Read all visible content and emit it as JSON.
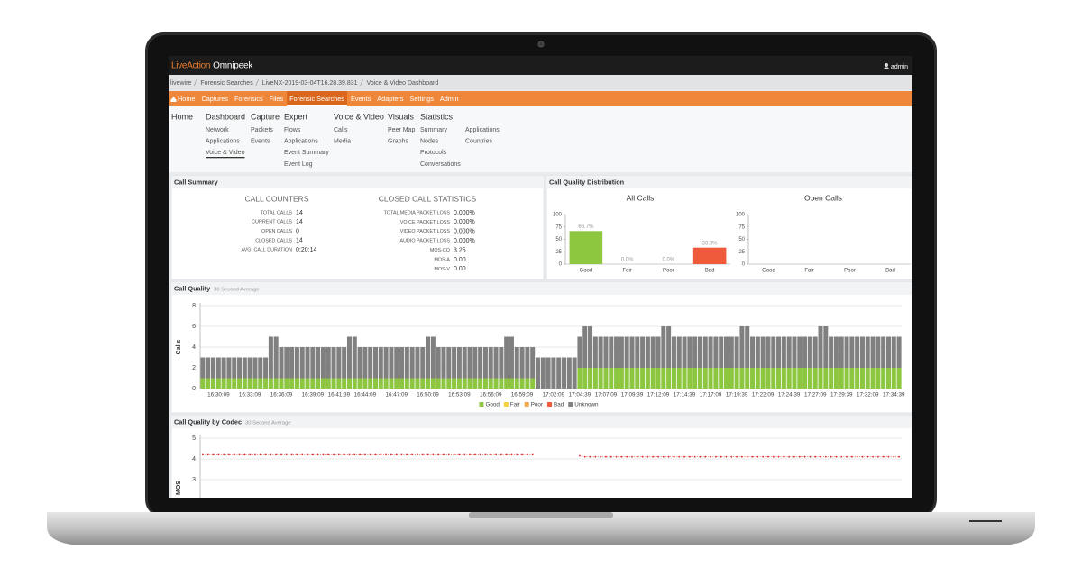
{
  "header": {
    "brand": "LiveAction",
    "product": "Omnipeek",
    "user": "admin"
  },
  "breadcrumb": [
    "livewire",
    "Forensic Searches",
    "LiveNX-2019-03-04T16.28.39.831",
    "Voice & Video Dashboard"
  ],
  "nav": {
    "items": [
      "Home",
      "Captures",
      "Forensics",
      "Files",
      "Forensic Searches",
      "Events",
      "Adapters",
      "Settings",
      "Admin"
    ],
    "active": "Forensic Searches"
  },
  "menu": [
    {
      "title": "Home"
    },
    {
      "title": "Dashboard",
      "items": [
        "Network",
        "Applications",
        "Voice & Video"
      ],
      "active": "Voice & Video"
    },
    {
      "title": "Capture",
      "items": [
        "Packets",
        "Events"
      ]
    },
    {
      "title": "Expert",
      "items": [
        "Flows",
        "Applications",
        "Event Summary",
        "Event Log"
      ]
    },
    {
      "title": "Voice & Video",
      "items": [
        "Calls",
        "Media"
      ]
    },
    {
      "title": "Visuals",
      "items": [
        "Peer Map",
        "Graphs"
      ]
    },
    {
      "title": "Statistics",
      "items": [
        "Summary",
        "Nodes",
        "Protocols",
        "Conversations"
      ],
      "more_items": [
        "Applications",
        "Countries"
      ]
    }
  ],
  "call_summary": {
    "title": "Call Summary",
    "counters": {
      "heading": "CALL COUNTERS",
      "rows": [
        {
          "label": "TOTAL CALLS",
          "value": 14
        },
        {
          "label": "CURRENT CALLS",
          "value": 14
        },
        {
          "label": "OPEN CALLS",
          "value": 0
        },
        {
          "label": "CLOSED CALLS",
          "value": 14
        },
        {
          "label": "AVG. CALL DURATION",
          "value": "0:20:14"
        }
      ]
    },
    "closed": {
      "heading": "CLOSED CALL STATISTICS",
      "rows": [
        {
          "label": "TOTAL MEDIA PACKET LOSS",
          "value": "0.000%"
        },
        {
          "label": "VOICE PACKET LOSS",
          "value": "0.000%"
        },
        {
          "label": "VIDEO PACKET LOSS",
          "value": "0.000%"
        },
        {
          "label": "AUDIO PACKET LOSS",
          "value": "0.000%"
        },
        {
          "label": "MOS-CQ",
          "value": 3.25
        },
        {
          "label": "MOS-A",
          "value": "0.00"
        },
        {
          "label": "MOS-V",
          "value": "0.00"
        }
      ]
    }
  },
  "distribution": {
    "title": "Call Quality Distribution",
    "charts": [
      {
        "type": "bar",
        "title": "All Calls",
        "categories": [
          "Good",
          "Fair",
          "Poor",
          "Bad"
        ],
        "values": [
          66.7,
          0,
          0,
          33.3
        ],
        "value_labels": [
          "66.7%",
          "0.0%",
          "0.0%",
          "33.3%"
        ],
        "colors": [
          "#8dc63f",
          "#8dc63f",
          "#8dc63f",
          "#ef5a3c"
        ],
        "ylim": [
          0,
          100
        ],
        "yticks": [
          0,
          25,
          50,
          75,
          100
        ]
      },
      {
        "type": "bar",
        "title": "Open Calls",
        "categories": [
          "Good",
          "Fair",
          "Poor",
          "Bad"
        ],
        "ylim": [
          0,
          100
        ],
        "yticks": [
          0,
          25,
          50,
          75,
          100
        ]
      }
    ]
  },
  "chart_data": [
    {
      "type": "stacked_bar",
      "title": "Call Quality",
      "subtitle": "30 Second Average",
      "y_label": "Calls",
      "categories": [
        null,
        null,
        null,
        "16:30:09",
        null,
        null,
        null,
        null,
        null,
        "16:33:09",
        null,
        null,
        null,
        null,
        null,
        "16:36:09",
        null,
        null,
        null,
        null,
        null,
        "16:39:09",
        null,
        null,
        null,
        null,
        "16:41:39",
        null,
        null,
        null,
        null,
        "16:44:09",
        null,
        null,
        null,
        null,
        null,
        "16:47:09",
        null,
        null,
        null,
        null,
        null,
        "16:50:09",
        null,
        null,
        null,
        null,
        null,
        "16:53:09",
        null,
        null,
        null,
        null,
        null,
        "16:56:09",
        null,
        null,
        null,
        null,
        null,
        "16:59:09",
        null,
        null,
        null,
        null,
        null,
        "17:02:09",
        null,
        null,
        null,
        null,
        "17:04:39",
        null,
        null,
        null,
        null,
        "17:07:09",
        null,
        null,
        null,
        null,
        "17:09:39",
        null,
        null,
        null,
        null,
        "17:12:09",
        null,
        null,
        null,
        null,
        "17:14:39",
        null,
        null,
        null,
        null,
        "17:17:09",
        null,
        null,
        null,
        null,
        "17:19:39",
        null,
        null,
        null,
        null,
        "17:22:09",
        null,
        null,
        null,
        null,
        "17:24:39",
        null,
        null,
        null,
        null,
        "17:27:09",
        null,
        null,
        null,
        null,
        "17:29:39",
        null,
        null,
        null,
        null,
        "17:32:09",
        null,
        null,
        null,
        null,
        "17:34:39",
        null
      ],
      "series": [
        {
          "name": "Good",
          "color": "#8dc63f",
          "values": [
            1,
            1,
            1,
            1,
            1,
            1,
            1,
            1,
            1,
            1,
            1,
            1,
            1,
            1,
            1,
            1,
            1,
            1,
            1,
            1,
            1,
            1,
            1,
            1,
            1,
            1,
            1,
            1,
            1,
            1,
            1,
            1,
            1,
            1,
            1,
            1,
            1,
            1,
            1,
            1,
            1,
            1,
            1,
            1,
            1,
            1,
            1,
            1,
            1,
            1,
            1,
            1,
            1,
            1,
            1,
            1,
            1,
            1,
            1,
            1,
            1,
            1,
            1,
            1,
            0,
            0,
            0,
            0,
            0,
            0,
            0,
            0,
            2,
            2,
            2,
            2,
            2,
            2,
            2,
            2,
            2,
            2,
            2,
            2,
            2,
            2,
            2,
            2,
            2,
            2,
            2,
            2,
            2,
            2,
            2,
            2,
            2,
            2,
            2,
            2,
            2,
            2,
            2,
            2,
            2,
            2,
            2,
            2,
            2,
            2,
            2,
            2,
            2,
            2,
            2,
            2,
            2,
            2,
            2,
            2,
            2,
            2,
            2,
            2,
            2,
            2,
            2,
            2,
            2,
            2,
            2,
            2,
            2,
            2
          ]
        },
        {
          "name": "Fair",
          "color": "#f7d23e"
        },
        {
          "name": "Poor",
          "color": "#f5a94a"
        },
        {
          "name": "Bad",
          "color": "#ef5a3c"
        },
        {
          "name": "Unknown",
          "color": "#808080",
          "values": [
            2,
            2,
            2,
            2,
            2,
            2,
            2,
            2,
            2,
            2,
            2,
            2,
            2,
            4,
            4,
            3,
            3,
            3,
            3,
            3,
            3,
            3,
            3,
            3,
            3,
            3,
            3,
            3,
            4,
            4,
            3,
            3,
            3,
            3,
            3,
            3,
            3,
            3,
            3,
            3,
            3,
            3,
            3,
            4,
            4,
            3,
            3,
            3,
            3,
            3,
            3,
            3,
            3,
            3,
            3,
            3,
            3,
            3,
            4,
            4,
            3,
            3,
            3,
            3,
            3,
            3,
            3,
            3,
            3,
            3,
            3,
            3,
            3,
            4,
            4,
            3,
            3,
            3,
            3,
            3,
            3,
            3,
            3,
            3,
            3,
            3,
            3,
            3,
            4,
            4,
            3,
            3,
            3,
            3,
            3,
            3,
            3,
            3,
            3,
            3,
            3,
            3,
            3,
            4,
            4,
            3,
            3,
            3,
            3,
            3,
            3,
            3,
            3,
            3,
            3,
            3,
            3,
            3,
            4,
            4,
            3,
            3,
            3,
            3,
            3,
            3,
            3,
            3,
            3,
            3,
            3,
            3,
            3,
            3
          ]
        }
      ],
      "ylim": [
        0,
        8
      ],
      "yticks": [
        0,
        2,
        4,
        6,
        8
      ],
      "grid": true,
      "legend": "bottom"
    },
    {
      "type": "line",
      "title": "Call Quality by Codec",
      "subtitle": "30 Second Average",
      "y_label": "MOS",
      "series": [
        {
          "color": "#d9302c",
          "values": [
            4.2,
            4.2,
            4.2,
            4.2,
            4.2,
            4.2,
            4.2,
            4.2,
            4.2,
            4.2,
            4.2,
            4.2,
            4.2,
            4.2,
            4.2,
            4.2,
            4.2,
            4.2,
            4.2,
            4.2,
            4.2,
            4.2,
            4.2,
            4.2,
            4.2,
            4.2,
            4.2,
            4.2,
            4.2,
            4.2,
            4.2,
            4.2,
            4.2,
            4.2,
            4.2,
            4.2,
            4.2,
            4.2,
            4.2,
            4.2,
            4.2,
            4.2,
            4.2,
            4.2,
            4.2,
            4.2,
            4.2,
            4.2,
            4.2,
            4.2,
            4.2,
            4.2,
            4.2,
            4.2,
            4.2,
            4.2,
            4.2,
            4.2,
            4.2,
            4.2,
            4.2,
            4.2,
            4.2,
            4.2,
            null,
            null,
            null,
            null,
            null,
            null,
            null,
            null,
            4.15,
            4.1,
            4.1,
            4.1,
            4.1,
            4.1,
            4.1,
            4.1,
            4.1,
            4.1,
            4.1,
            4.1,
            4.1,
            4.1,
            4.1,
            4.1,
            4.1,
            4.1,
            4.1,
            4.1,
            4.1,
            4.1,
            4.1,
            4.1,
            4.1,
            4.1,
            4.1,
            4.1,
            4.1,
            4.1,
            4.1,
            4.1,
            4.1,
            4.1,
            4.1,
            4.1,
            4.1,
            4.1,
            4.1,
            4.1,
            4.1,
            4.1,
            4.1,
            4.1,
            4.1,
            4.1,
            4.1,
            4.1,
            4.1,
            4.1,
            4.1,
            4.1,
            4.1,
            4.1,
            4.1,
            4.1,
            4.1,
            4.1,
            4.1,
            4.1,
            4.1,
            4.1
          ]
        }
      ],
      "ylim": [
        0,
        5
      ],
      "yticks": [
        3,
        4,
        5
      ],
      "grid": true
    }
  ]
}
